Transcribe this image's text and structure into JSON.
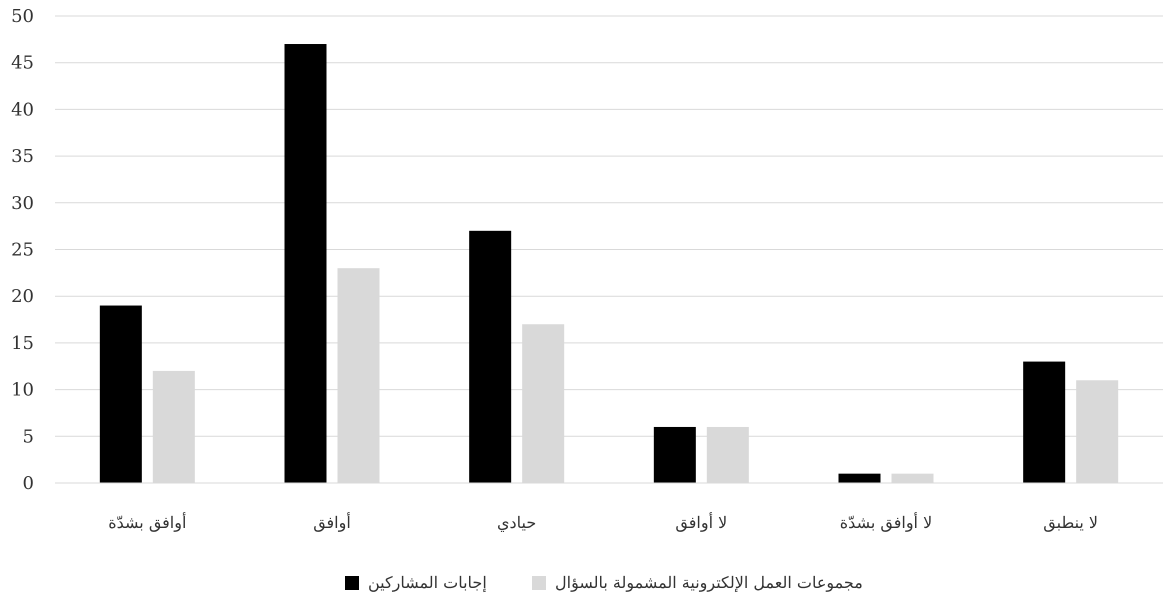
{
  "chart_data": {
    "type": "bar",
    "categories": [
      "أوافق بشدّة",
      "أوافق",
      "حيادي",
      "لا أوافق",
      "لا أوافق بشدّة",
      "لا ينطبق"
    ],
    "series": [
      {
        "name": "إجابات المشاركين",
        "color": "#000000",
        "values": [
          19,
          47,
          27,
          6,
          1,
          13
        ]
      },
      {
        "name": "مجموعات العمل الإلكترونية المشمولة بالسؤال",
        "color": "#d9d9d9",
        "values": [
          12,
          23,
          17,
          6,
          1,
          11
        ]
      }
    ],
    "ylim": [
      0,
      50
    ],
    "yticks": [
      0,
      5,
      10,
      15,
      20,
      25,
      30,
      35,
      40,
      45,
      50
    ],
    "grid": true,
    "legend_position": "bottom"
  }
}
